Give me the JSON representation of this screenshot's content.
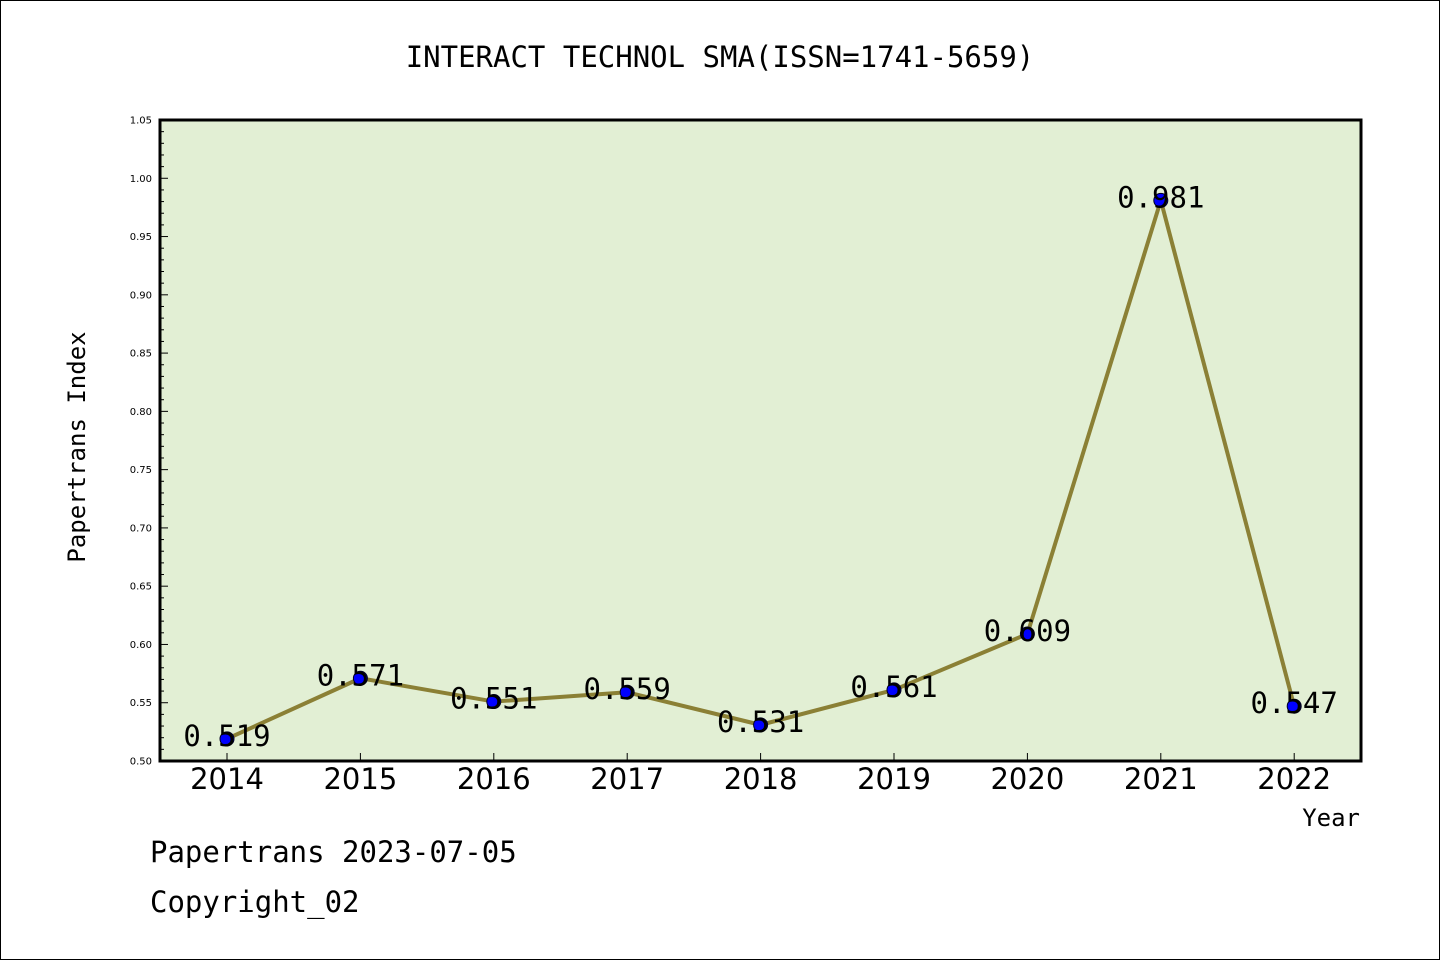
{
  "chart_data": {
    "type": "line",
    "title": "INTERACT TECHNOL SMA(ISSN=1741-5659)",
    "xlabel": "Year",
    "ylabel": "Papertrans Index",
    "categories": [
      "2014",
      "2015",
      "2016",
      "2017",
      "2018",
      "2019",
      "2020",
      "2021",
      "2022"
    ],
    "series": [
      {
        "values": [
          0.519,
          0.571,
          0.551,
          0.559,
          0.531,
          0.561,
          0.609,
          0.981,
          0.547
        ],
        "labels": [
          "0.519",
          "0.571",
          "0.551",
          "0.559",
          "0.531",
          "0.561",
          "0.609",
          "0.981",
          "0.547"
        ]
      }
    ],
    "ylim": [
      0.5,
      1.05
    ],
    "yticks": [
      "0.50",
      "0.55",
      "0.60",
      "0.65",
      "0.70",
      "0.75",
      "0.80",
      "0.85",
      "0.90",
      "0.95",
      "1.00",
      "1.05"
    ],
    "grid": false,
    "legend": "none",
    "colors": {
      "plot_background": "#e2efd4",
      "line": "#8b8035",
      "marker": "#0000ff"
    }
  },
  "footer": {
    "date_text": "Papertrans 2023-07-05",
    "copyright_text": "Copyright_02"
  }
}
